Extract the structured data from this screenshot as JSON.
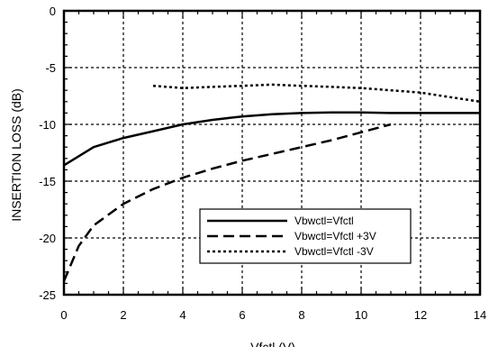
{
  "chart_data": {
    "type": "line",
    "title": "",
    "xlabel": "Vfctl (V)",
    "ylabel": "INSERTION LOSS (dB)",
    "xlim": [
      0,
      14
    ],
    "ylim": [
      -25,
      0
    ],
    "xticks": [
      "0",
      "2",
      "4",
      "6",
      "8",
      "10",
      "12",
      "14"
    ],
    "yticks": [
      "0",
      "-5",
      "-10",
      "-15",
      "-20",
      "-25"
    ],
    "grid": true,
    "legend_position": "lower-right",
    "series": [
      {
        "name": "Vbwctl=Vfctl",
        "style": "solid",
        "x": [
          0,
          1,
          2,
          3,
          4,
          5,
          6,
          7,
          8,
          9,
          10,
          11,
          12,
          13,
          14
        ],
        "y": [
          -13.6,
          -12.0,
          -11.2,
          -10.6,
          -10.0,
          -9.6,
          -9.3,
          -9.1,
          -9.0,
          -8.95,
          -8.95,
          -9.0,
          -9.0,
          -9.0,
          -9.0
        ]
      },
      {
        "name": "Vbwctl=Vfctl +3V",
        "style": "dashed",
        "x": [
          0,
          0.5,
          1,
          2,
          3,
          4,
          5,
          6,
          7,
          8,
          9,
          10,
          11
        ],
        "y": [
          -23.8,
          -20.7,
          -18.9,
          -17.0,
          -15.7,
          -14.7,
          -13.9,
          -13.2,
          -12.6,
          -12.0,
          -11.4,
          -10.7,
          -10.0
        ]
      },
      {
        "name": "Vbwctl=Vfctl -3V",
        "style": "dotted",
        "x": [
          3,
          4,
          5,
          6,
          7,
          8,
          9,
          10,
          11,
          12,
          13,
          14
        ],
        "y": [
          -6.6,
          -6.8,
          -6.7,
          -6.6,
          -6.5,
          -6.6,
          -6.7,
          -6.8,
          -7.0,
          -7.2,
          -7.6,
          -8.0
        ]
      }
    ]
  }
}
